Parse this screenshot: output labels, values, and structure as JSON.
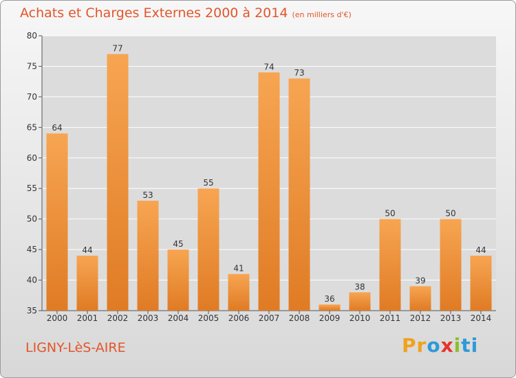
{
  "header": {
    "title": "Achats et Charges Externes 2000 à 2014",
    "unit": "(en milliers d'€)"
  },
  "footer": {
    "location": "LIGNY-LèS-AIRE",
    "brand": "Proxiti"
  },
  "colors": {
    "title": "#e2552a",
    "bar_light": "#f7a552",
    "bar_dark": "#e07b24",
    "logo_letters": [
      "#f0a21c",
      "#f0a21c",
      "#2e9ad8",
      "#e5342b",
      "#8dbe2b",
      "#2e9ad8",
      "#2e9ad8"
    ]
  },
  "chart_data": {
    "type": "bar",
    "title": "Achats et Charges Externes 2000 à 2014",
    "subtitle": "(en milliers d'€)",
    "categories": [
      "2000",
      "2001",
      "2002",
      "2003",
      "2004",
      "2005",
      "2006",
      "2007",
      "2008",
      "2009",
      "2010",
      "2011",
      "2012",
      "2013",
      "2014"
    ],
    "values": [
      64,
      44,
      77,
      53,
      45,
      55,
      41,
      74,
      73,
      36,
      38,
      50,
      39,
      50,
      44
    ],
    "ylim": [
      35,
      80
    ],
    "yticks": [
      35,
      40,
      45,
      50,
      55,
      60,
      65,
      70,
      75,
      80
    ],
    "grid": true,
    "data_labels": true
  }
}
